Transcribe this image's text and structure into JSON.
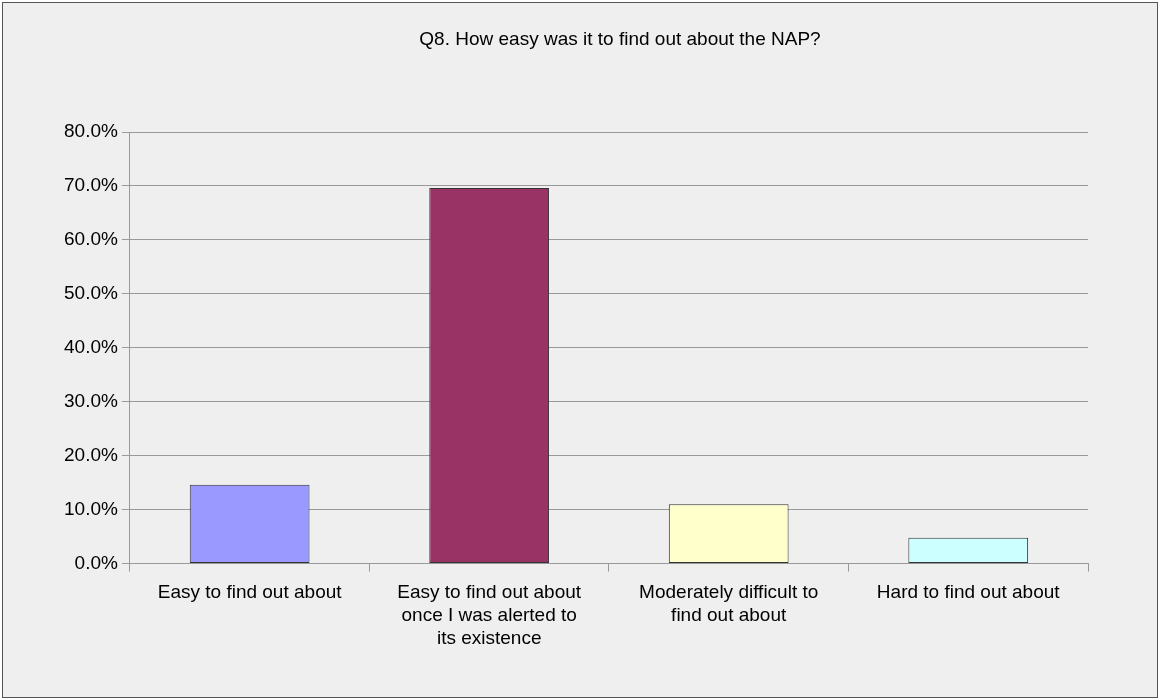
{
  "chart_data": {
    "type": "bar",
    "title": "Q8. How easy was it to find out about the NAP?",
    "categories": [
      "Easy to find out about",
      "Easy to find out about once I was alerted to its existence",
      "Moderately difficult to find out about",
      "Hard to find out about"
    ],
    "values": [
      14.6,
      69.6,
      11.0,
      4.8
    ],
    "colors": [
      "#9999ff",
      "#993366",
      "#ffffcc",
      "#ccffff"
    ],
    "ylim": [
      0,
      80
    ],
    "yticks": [
      {
        "value": 0,
        "label": "0.0%"
      },
      {
        "value": 10,
        "label": "10.0%"
      },
      {
        "value": 20,
        "label": "20.0%"
      },
      {
        "value": 30,
        "label": "30.0%"
      },
      {
        "value": 40,
        "label": "40.0%"
      },
      {
        "value": 50,
        "label": "50.0%"
      },
      {
        "value": 60,
        "label": "60.0%"
      },
      {
        "value": 70,
        "label": "70.0%"
      },
      {
        "value": 80,
        "label": "80.0%"
      }
    ],
    "grid": "y",
    "legend": false
  }
}
